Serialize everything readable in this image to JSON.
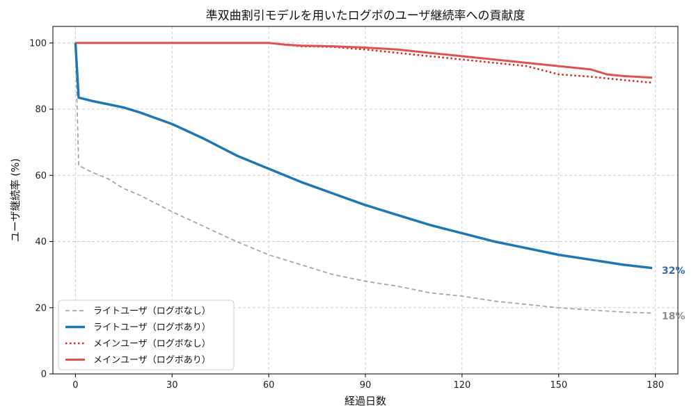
{
  "chart_data": {
    "type": "line",
    "title": "準双曲割引モデルを用いたログボのユーザ継続率への貢献度",
    "xlabel": "経過日数",
    "ylabel": "ユーザ継続率 (%)",
    "xlim": [
      -7,
      187
    ],
    "ylim": [
      0,
      105
    ],
    "xticks": [
      0,
      30,
      60,
      90,
      120,
      150,
      180
    ],
    "yticks": [
      0,
      20,
      40,
      60,
      80,
      100
    ],
    "grid": true,
    "legend_position": "lower-left",
    "series": [
      {
        "name": "ライトユーザ（ログボなし）",
        "color": "#a6a6a6",
        "style": "dashed",
        "x": [
          0,
          1,
          5,
          10,
          15,
          20,
          30,
          40,
          50,
          60,
          70,
          80,
          90,
          100,
          110,
          120,
          130,
          140,
          150,
          160,
          170,
          179
        ],
        "y": [
          100,
          63,
          61,
          59,
          56,
          54,
          49,
          44.5,
          40,
          36,
          33,
          30,
          28,
          26.5,
          24.5,
          23.5,
          22,
          21,
          20,
          19.3,
          18.7,
          18.4
        ]
      },
      {
        "name": "ライトユーザ（ログボあり）",
        "color": "#1f77b4",
        "style": "solid-thick",
        "x": [
          0,
          1,
          5,
          10,
          15,
          20,
          30,
          40,
          50,
          60,
          70,
          80,
          90,
          100,
          110,
          120,
          130,
          140,
          150,
          160,
          170,
          179
        ],
        "y": [
          100,
          83.5,
          82.5,
          81.5,
          80.5,
          79,
          75.5,
          71,
          66,
          62,
          58,
          54.5,
          51,
          48,
          45,
          42.5,
          40,
          38,
          36,
          34.5,
          33,
          32
        ]
      },
      {
        "name": "メインユーザ（ログボなし）",
        "color": "#d62728",
        "style": "dotted",
        "x": [
          0,
          30,
          60,
          65,
          70,
          80,
          90,
          100,
          110,
          120,
          130,
          140,
          150,
          160,
          170,
          179
        ],
        "y": [
          100,
          100,
          100,
          99.5,
          99,
          98.8,
          98,
          97,
          96,
          95,
          94,
          93,
          90.5,
          89.8,
          88.8,
          88
        ]
      },
      {
        "name": "メインユーザ（ログボあり）",
        "color": "#e05252",
        "style": "solid",
        "x": [
          0,
          30,
          60,
          65,
          70,
          80,
          90,
          100,
          110,
          120,
          130,
          140,
          150,
          160,
          165,
          170,
          179
        ],
        "y": [
          100,
          100,
          100,
          99.5,
          99.2,
          99,
          98.6,
          98,
          97,
          96,
          95,
          94,
          93,
          92,
          90.5,
          90,
          89.5
        ]
      }
    ],
    "end_labels": [
      {
        "text": "32%",
        "color": "#3a6ea5",
        "x": 182,
        "y": 30.2
      },
      {
        "text": "18%",
        "color": "#8c8c8c",
        "x": 182,
        "y": 16.5
      }
    ]
  }
}
